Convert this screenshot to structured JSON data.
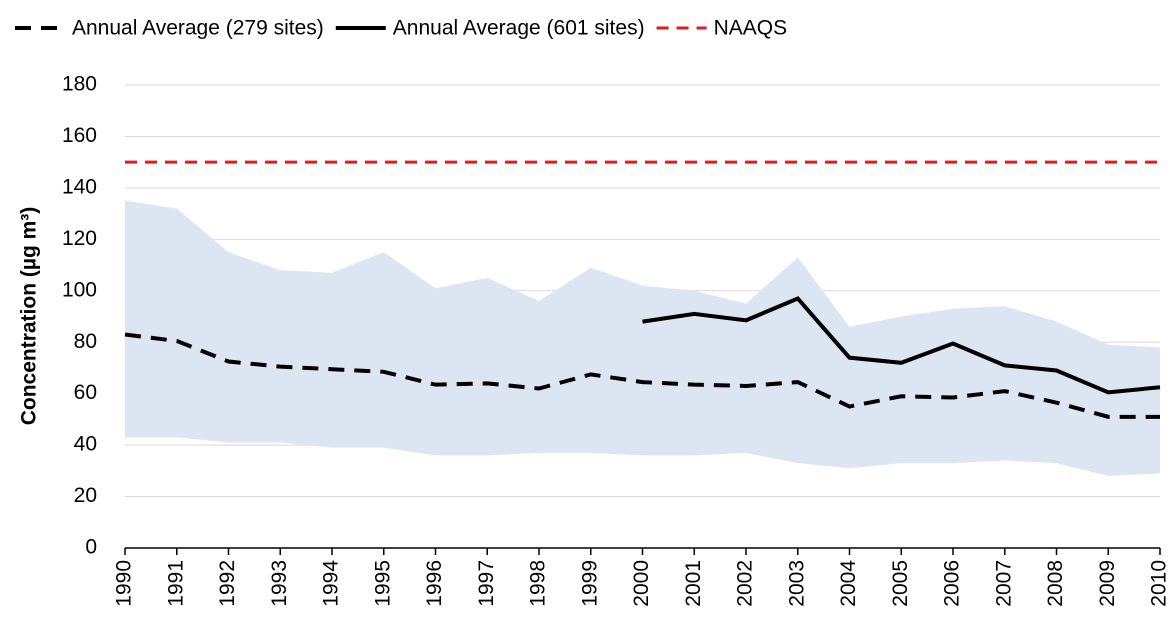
{
  "chart_data": {
    "type": "line",
    "y_label": "Concentration (µg m³)",
    "categories": [
      "1990",
      "1991",
      "1992",
      "1993",
      "1994",
      "1995",
      "1996",
      "1997",
      "1998",
      "1999",
      "2000",
      "2001",
      "2002",
      "2003",
      "2004",
      "2005",
      "2006",
      "2007",
      "2008",
      "2009",
      "2010"
    ],
    "series": [
      {
        "name": "Annual Average (279 sites)",
        "color": "#000000",
        "dash": true,
        "values": [
          83,
          80.5,
          72.5,
          70.5,
          69.5,
          68.5,
          63.5,
          64,
          62,
          67.5,
          64.5,
          63.5,
          63,
          64.5,
          55,
          59,
          58.5,
          61,
          56.5,
          51,
          51
        ]
      },
      {
        "name": "Annual Average (601 sites)",
        "color": "#000000",
        "dash": false,
        "values": [
          null,
          null,
          null,
          null,
          null,
          null,
          null,
          null,
          null,
          null,
          88,
          91,
          88.5,
          97,
          74,
          72,
          79.5,
          71,
          69,
          60.5,
          62.5
        ]
      },
      {
        "name": "NAAQS",
        "color": "#e31a1c",
        "dash": true,
        "values": [
          150,
          150,
          150,
          150,
          150,
          150,
          150,
          150,
          150,
          150,
          150,
          150,
          150,
          150,
          150,
          150,
          150,
          150,
          150,
          150,
          150
        ]
      }
    ],
    "band": {
      "color": "#dce6f2",
      "upper": [
        135,
        132,
        115,
        108,
        107,
        115,
        101,
        105,
        96,
        109,
        102,
        100,
        95,
        113,
        86,
        90,
        93,
        94,
        88,
        79,
        78
      ],
      "lower": [
        43,
        43,
        41,
        41,
        39,
        39,
        36,
        36,
        37,
        37,
        36,
        36,
        37,
        33,
        31,
        33,
        33,
        34,
        33,
        28,
        29
      ]
    },
    "ylim": [
      0,
      180
    ],
    "yticks": [
      0,
      20,
      40,
      60,
      80,
      100,
      120,
      140,
      160,
      180
    ],
    "grid": true
  }
}
